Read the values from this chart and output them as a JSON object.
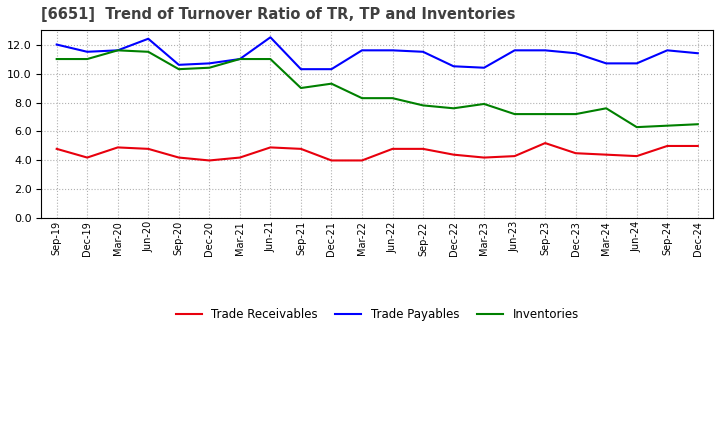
{
  "title": "[6651]  Trend of Turnover Ratio of TR, TP and Inventories",
  "x_labels": [
    "Sep-19",
    "Dec-19",
    "Mar-20",
    "Jun-20",
    "Sep-20",
    "Dec-20",
    "Mar-21",
    "Jun-21",
    "Sep-21",
    "Dec-21",
    "Mar-22",
    "Jun-22",
    "Sep-22",
    "Dec-22",
    "Mar-23",
    "Jun-23",
    "Sep-23",
    "Dec-23",
    "Mar-24",
    "Jun-24",
    "Sep-24",
    "Dec-24"
  ],
  "trade_receivables": [
    4.8,
    4.2,
    4.9,
    4.8,
    4.2,
    4.0,
    4.2,
    4.9,
    4.8,
    4.0,
    4.0,
    4.8,
    4.8,
    4.4,
    4.2,
    4.3,
    5.2,
    4.5,
    4.4,
    4.3,
    5.0,
    5.0
  ],
  "trade_payables": [
    12.0,
    11.5,
    11.6,
    12.4,
    10.6,
    10.7,
    11.0,
    12.5,
    10.3,
    10.3,
    11.6,
    11.6,
    11.5,
    10.5,
    10.4,
    11.6,
    11.6,
    11.4,
    10.7,
    10.7,
    11.6,
    11.4
  ],
  "inventories": [
    11.0,
    11.0,
    11.6,
    11.5,
    10.3,
    10.4,
    11.0,
    11.0,
    9.0,
    9.3,
    8.3,
    8.3,
    7.8,
    7.6,
    7.9,
    7.2,
    7.2,
    7.2,
    7.6,
    6.3,
    6.4,
    6.5
  ],
  "ylim": [
    0.0,
    13.0
  ],
  "yticks": [
    0.0,
    2.0,
    4.0,
    6.0,
    8.0,
    10.0,
    12.0
  ],
  "color_tr": "#e8000d",
  "color_tp": "#0000ff",
  "color_inv": "#008000",
  "legend_labels": [
    "Trade Receivables",
    "Trade Payables",
    "Inventories"
  ],
  "bg_color": "#ffffff",
  "grid_color": "#b0b0b0",
  "title_color": "#404040"
}
